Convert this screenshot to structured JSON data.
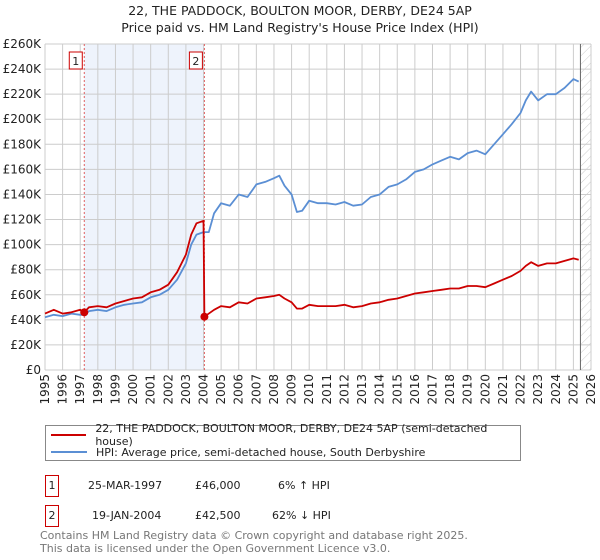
{
  "title_line1": "22, THE PADDOCK, BOULTON MOOR, DERBY, DE24 5AP",
  "title_line2": "Price paid vs. HM Land Registry's House Price Index (HPI)",
  "legend": {
    "series1": "22, THE PADDOCK, BOULTON MOOR, DERBY, DE24 5AP (semi-detached house)",
    "series2": "HPI: Average price, semi-detached house, South Derbyshire"
  },
  "sales": [
    {
      "num": "1",
      "date": "25-MAR-1997",
      "price": "£46,000",
      "hpi": "6% ↑ HPI",
      "year": 1997.23,
      "value": 46
    },
    {
      "num": "2",
      "date": "19-JAN-2004",
      "price": "£42,500",
      "hpi": "62% ↓ HPI",
      "year": 2004.05,
      "value": 42.5
    }
  ],
  "footer": {
    "line1": "Contains HM Land Registry data © Crown copyright and database right 2025.",
    "line2": "This data is licensed under the Open Government Licence v3.0."
  },
  "colors": {
    "price": "#cc0000",
    "hpi": "#5b8fd4",
    "shade": "#eef3fc",
    "grid": "#cccccc"
  },
  "chart_data": {
    "type": "line",
    "title": "22, THE PADDOCK, BOULTON MOOR, DERBY, DE24 5AP — Price paid vs. HM Land Registry's House Price Index (HPI)",
    "xlabel": "",
    "ylabel": "",
    "xlim": [
      1995,
      2026
    ],
    "ylim": [
      0,
      260
    ],
    "grid": true,
    "legend_position": "bottom",
    "x_ticks": [
      "1995",
      "1996",
      "1997",
      "1998",
      "1999",
      "2000",
      "2001",
      "2002",
      "2003",
      "2004",
      "2005",
      "2006",
      "2007",
      "2008",
      "2009",
      "2010",
      "2011",
      "2012",
      "2013",
      "2014",
      "2015",
      "2016",
      "2017",
      "2018",
      "2019",
      "2020",
      "2021",
      "2022",
      "2023",
      "2024",
      "2025",
      "2026"
    ],
    "y_ticks": [
      "£0",
      "£20K",
      "£40K",
      "£60K",
      "£80K",
      "£100K",
      "£120K",
      "£140K",
      "£160K",
      "£180K",
      "£200K",
      "£220K",
      "£240K",
      "£260K"
    ],
    "y_units": "thousand GBP",
    "forecast_from": 2025.4,
    "series": [
      {
        "name": "22, THE PADDOCK, BOULTON MOOR, DERBY, DE24 5AP (semi-detached house)",
        "x": [
          1995,
          1995.5,
          1996,
          1996.5,
          1997,
          1997.23,
          1997.5,
          1998,
          1998.5,
          1999,
          1999.5,
          2000,
          2000.5,
          2001,
          2001.5,
          2002,
          2002.5,
          2003,
          2003.3,
          2003.6,
          2004.0,
          2004.05,
          2004.6,
          2005,
          2005.5,
          2006,
          2006.5,
          2007,
          2007.5,
          2008,
          2008.3,
          2008.6,
          2009,
          2009.3,
          2009.6,
          2010,
          2010.5,
          2011,
          2011.5,
          2012,
          2012.5,
          2013,
          2013.5,
          2014,
          2014.5,
          2015,
          2015.5,
          2016,
          2016.5,
          2017,
          2017.5,
          2018,
          2018.5,
          2019,
          2019.5,
          2020,
          2020.5,
          2021,
          2021.5,
          2022,
          2022.3,
          2022.6,
          2023,
          2023.5,
          2024,
          2024.5,
          2025,
          2025.3
        ],
        "values": [
          45,
          48,
          45,
          46,
          48,
          46,
          50,
          51,
          50,
          53,
          55,
          57,
          58,
          62,
          64,
          68,
          78,
          92,
          108,
          117,
          119,
          42.5,
          48,
          51,
          50,
          54,
          53,
          57,
          58,
          59,
          60,
          57,
          54,
          49,
          49,
          52,
          51,
          51,
          51,
          52,
          50,
          51,
          53,
          54,
          56,
          57,
          59,
          61,
          62,
          63,
          64,
          65,
          65,
          67,
          67,
          66,
          69,
          72,
          75,
          79,
          83,
          86,
          83,
          85,
          85,
          87,
          89,
          88
        ]
      },
      {
        "name": "HPI: Average price, semi-detached house, South Derbyshire",
        "x": [
          1995,
          1995.5,
          1996,
          1996.5,
          1997,
          1997.25,
          1997.5,
          1998,
          1998.5,
          1999,
          1999.5,
          2000,
          2000.5,
          2001,
          2001.5,
          2002,
          2002.5,
          2003,
          2003.3,
          2003.6,
          2004.0,
          2004.3,
          2004.6,
          2005,
          2005.5,
          2006,
          2006.5,
          2007,
          2007.5,
          2008,
          2008.3,
          2008.6,
          2009,
          2009.3,
          2009.6,
          2010,
          2010.5,
          2011,
          2011.5,
          2012,
          2012.5,
          2013,
          2013.5,
          2014,
          2014.5,
          2015,
          2015.5,
          2016,
          2016.5,
          2017,
          2017.5,
          2018,
          2018.5,
          2019,
          2019.5,
          2020,
          2020.5,
          2021,
          2021.5,
          2022,
          2022.3,
          2022.6,
          2023,
          2023.5,
          2024,
          2024.5,
          2025,
          2025.3
        ],
        "values": [
          42,
          44,
          43,
          45,
          44,
          44,
          47,
          48,
          47,
          50,
          52,
          53,
          54,
          58,
          60,
          64,
          72,
          85,
          100,
          108,
          110,
          110,
          125,
          133,
          131,
          140,
          138,
          148,
          150,
          153,
          155,
          147,
          140,
          126,
          127,
          135,
          133,
          133,
          132,
          134,
          131,
          132,
          138,
          140,
          146,
          148,
          152,
          158,
          160,
          164,
          167,
          170,
          168,
          173,
          175,
          172,
          180,
          188,
          196,
          205,
          215,
          222,
          215,
          220,
          220,
          225,
          232,
          230
        ]
      }
    ]
  }
}
